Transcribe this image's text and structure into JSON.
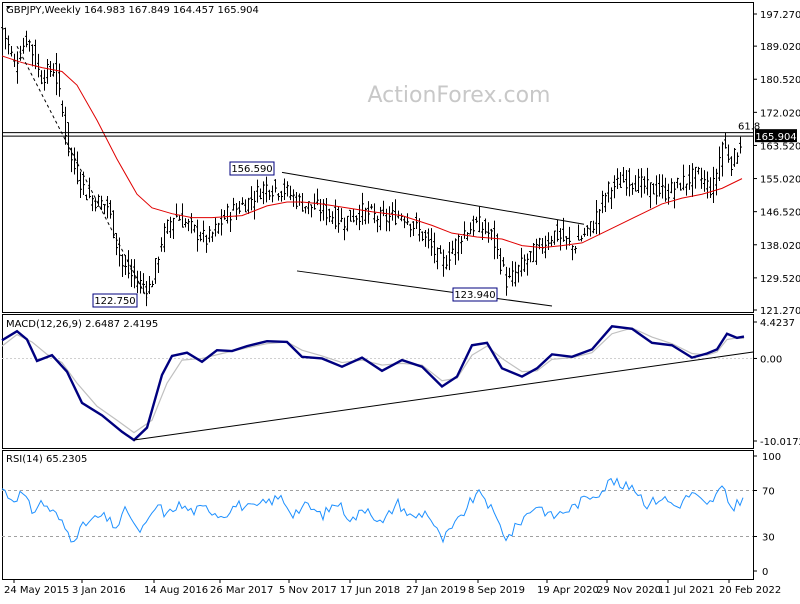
{
  "main": {
    "header": "GBPJPY,Weekly  164.983 167.849 164.457 165.904",
    "watermark": "ActionForex.com",
    "current_price": "165.904",
    "fib_label": "61.8",
    "annotations": [
      "156.590",
      "122.750",
      "123.940"
    ]
  },
  "macd": {
    "header": "MACD(12,26,9) 2.6487 2.4195"
  },
  "rsi": {
    "header": "RSI(14) 65.2305"
  },
  "colors": {
    "price_bar": "#000000",
    "moving_average": "#e00000",
    "macd_line": "#00007f",
    "signal_line": "#c0c0c0",
    "rsi_line": "#1e90ff",
    "border": "#000000",
    "current_price_bg": "#000000"
  },
  "chart_data": [
    {
      "type": "ohlc",
      "panel": "price",
      "title": "GBPJPY,Weekly",
      "ylim": [
        121.27,
        198.0
      ],
      "y_tick_labels": [
        "197.270",
        "189.020",
        "180.520",
        "172.020",
        "163.520",
        "155.020",
        "146.520",
        "138.020",
        "129.520",
        "121.270"
      ],
      "x_tick_labels": [
        "24 May 2015",
        "3 Jan 2016",
        "14 Aug 2016",
        "26 Mar 2017",
        "5 Nov 2017",
        "17 Jun 2018",
        "27 Jan 2019",
        "8 Sep 2019",
        "19 Apr 2020",
        "29 Nov 2020",
        "11 Jul 2021",
        "20 Feb 2022"
      ],
      "series": [
        {
          "values": [
            [
              0,
              193.5
            ],
            [
              12,
              184.5
            ],
            [
              25,
              191.5
            ],
            [
              38,
              181.0
            ],
            [
              52,
              183.5
            ],
            [
              68,
              160.0
            ],
            [
              85,
              150.5
            ],
            [
              105,
              148.0
            ],
            [
              120,
              132.5
            ],
            [
              135,
              128.5
            ],
            [
              148,
              127.0
            ],
            [
              160,
              140.0
            ],
            [
              172,
              146.0
            ],
            [
              190,
              142.0
            ],
            [
              205,
              139.0
            ],
            [
              225,
              146.0
            ],
            [
              245,
              149.0
            ],
            [
              262,
              153.0
            ],
            [
              282,
              152.0
            ],
            [
              300,
              148.5
            ],
            [
              320,
              147.0
            ],
            [
              340,
              144.0
            ],
            [
              360,
              146.5
            ],
            [
              380,
              144.5
            ],
            [
              400,
              146.0
            ],
            [
              420,
              140.5
            ],
            [
              440,
              133.0
            ],
            [
              460,
              141.0
            ],
            [
              475,
              143.5
            ],
            [
              490,
              140.0
            ],
            [
              505,
              128.0
            ],
            [
              520,
              133.0
            ],
            [
              535,
              137.0
            ],
            [
              552,
              141.0
            ],
            [
              570,
              137.5
            ],
            [
              590,
              143.0
            ],
            [
              605,
              152.0
            ],
            [
              625,
              155.0
            ],
            [
              645,
              152.5
            ],
            [
              665,
              151.5
            ],
            [
              680,
              154.0
            ],
            [
              695,
              156.0
            ],
            [
              710,
              152.0
            ],
            [
              720,
              164.0
            ],
            [
              730,
              159.0
            ],
            [
              740,
              165.9
            ]
          ]
        },
        {
          "name": "",
          "values": [
            [
              0,
              186.5
            ],
            [
              20,
              184.8
            ],
            [
              40,
              183.5
            ],
            [
              60,
              182.5
            ],
            [
              75,
              179.0
            ],
            [
              95,
              170.0
            ],
            [
              115,
              160.0
            ],
            [
              135,
              151.0
            ],
            [
              150,
              147.5
            ],
            [
              170,
              146.0
            ],
            [
              190,
              145.0
            ],
            [
              210,
              145.0
            ],
            [
              240,
              145.5
            ],
            [
              265,
              148.0
            ],
            [
              285,
              149.0
            ],
            [
              300,
              149.0
            ],
            [
              320,
              148.5
            ],
            [
              345,
              147.5
            ],
            [
              370,
              146.5
            ],
            [
              400,
              145.5
            ],
            [
              430,
              143.0
            ],
            [
              450,
              141.0
            ],
            [
              475,
              140.0
            ],
            [
              500,
              139.5
            ],
            [
              520,
              137.8
            ],
            [
              540,
              137.3
            ],
            [
              560,
              137.8
            ],
            [
              580,
              138.5
            ],
            [
              600,
              141.0
            ],
            [
              620,
              143.5
            ],
            [
              640,
              146.0
            ],
            [
              660,
              148.5
            ],
            [
              680,
              150.0
            ],
            [
              700,
              151.0
            ],
            [
              720,
              152.5
            ],
            [
              740,
              155.0
            ]
          ]
        }
      ],
      "annotations": [
        {
          "label": "156.590",
          "x": 280,
          "y": 156.59
        },
        {
          "label": "122.750",
          "x": 145,
          "y": 122.75
        },
        {
          "label": "123.940",
          "x": 505,
          "y": 123.94
        },
        {
          "label": "61.8",
          "x": 740,
          "y": 166.8
        }
      ],
      "trendlines": [
        {
          "from": [
            280,
            156.6
          ],
          "to": [
            582,
            143.3
          ]
        },
        {
          "from": [
            295,
            131.3
          ],
          "to": [
            550,
            122.3
          ]
        },
        {
          "from": [
            15,
            189.0
          ],
          "to": [
            145,
            124.3
          ],
          "style": "dashed"
        }
      ],
      "horizontal_lines": [
        166.8,
        165.904
      ],
      "current_price": 165.904
    },
    {
      "type": "line",
      "panel": "macd",
      "title": "MACD(12,26,9) 2.6487 2.4195",
      "ylim": [
        -10.0172,
        4.4237
      ],
      "y_tick_labels": [
        "4.4237",
        "0.00",
        "-10.0172"
      ],
      "series": [
        {
          "name": "MACD",
          "values": [
            [
              0,
              2.2
            ],
            [
              15,
              3.3
            ],
            [
              25,
              2.3
            ],
            [
              35,
              -0.3
            ],
            [
              50,
              0.4
            ],
            [
              65,
              -1.6
            ],
            [
              80,
              -5.4
            ],
            [
              100,
              -6.9
            ],
            [
              120,
              -8.9
            ],
            [
              132,
              -9.9
            ],
            [
              145,
              -8.4
            ],
            [
              160,
              -2.0
            ],
            [
              170,
              0.3
            ],
            [
              185,
              0.7
            ],
            [
              200,
              -0.4
            ],
            [
              215,
              1.0
            ],
            [
              230,
              0.9
            ],
            [
              245,
              1.5
            ],
            [
              265,
              2.1
            ],
            [
              285,
              2.0
            ],
            [
              300,
              0.2
            ],
            [
              320,
              0.0
            ],
            [
              340,
              -1.0
            ],
            [
              360,
              0.1
            ],
            [
              380,
              -1.5
            ],
            [
              400,
              -0.2
            ],
            [
              420,
              -1.0
            ],
            [
              440,
              -3.4
            ],
            [
              455,
              -2.2
            ],
            [
              470,
              1.6
            ],
            [
              485,
              1.9
            ],
            [
              500,
              -1.2
            ],
            [
              520,
              -2.2
            ],
            [
              535,
              -1.2
            ],
            [
              550,
              0.5
            ],
            [
              570,
              0.2
            ],
            [
              590,
              1.1
            ],
            [
              610,
              3.9
            ],
            [
              630,
              3.6
            ],
            [
              650,
              1.9
            ],
            [
              670,
              1.6
            ],
            [
              690,
              0.1
            ],
            [
              705,
              0.6
            ],
            [
              715,
              1.1
            ],
            [
              725,
              3.0
            ],
            [
              735,
              2.5
            ],
            [
              742,
              2.65
            ]
          ]
        },
        {
          "name": "Signal",
          "values": [
            [
              0,
              1.5
            ],
            [
              15,
              2.9
            ],
            [
              30,
              2.0
            ],
            [
              45,
              0.5
            ],
            [
              60,
              -0.5
            ],
            [
              75,
              -3.0
            ],
            [
              95,
              -5.8
            ],
            [
              115,
              -7.5
            ],
            [
              132,
              -9.0
            ],
            [
              150,
              -7.5
            ],
            [
              165,
              -3.0
            ],
            [
              180,
              -0.2
            ],
            [
              200,
              0.0
            ],
            [
              220,
              0.6
            ],
            [
              245,
              1.3
            ],
            [
              265,
              1.8
            ],
            [
              285,
              2.0
            ],
            [
              300,
              1.0
            ],
            [
              320,
              0.3
            ],
            [
              340,
              -0.5
            ],
            [
              360,
              -0.2
            ],
            [
              380,
              -0.8
            ],
            [
              400,
              -0.6
            ],
            [
              420,
              -0.8
            ],
            [
              440,
              -2.7
            ],
            [
              455,
              -2.4
            ],
            [
              470,
              0.4
            ],
            [
              485,
              1.5
            ],
            [
              500,
              0.0
            ],
            [
              520,
              -1.6
            ],
            [
              535,
              -1.5
            ],
            [
              550,
              -0.1
            ],
            [
              570,
              0.1
            ],
            [
              590,
              0.7
            ],
            [
              610,
              3.0
            ],
            [
              630,
              3.7
            ],
            [
              650,
              2.6
            ],
            [
              670,
              1.8
            ],
            [
              690,
              0.6
            ],
            [
              705,
              0.4
            ],
            [
              715,
              0.8
            ],
            [
              725,
              2.3
            ],
            [
              735,
              2.5
            ],
            [
              742,
              2.42
            ]
          ]
        }
      ],
      "trendlines": [
        {
          "from": [
            132,
            -9.9
          ],
          "to": [
            752,
            0.8
          ]
        }
      ]
    },
    {
      "type": "line",
      "panel": "rsi",
      "title": "RSI(14) 65.2305",
      "ylim": [
        0,
        100
      ],
      "y_tick_labels": [
        "100",
        "70",
        "30",
        "0"
      ],
      "reference_lines": [
        70,
        30
      ],
      "series": [
        {
          "name": "RSI(14)",
          "values": [
            [
              0,
              72
            ],
            [
              10,
              62
            ],
            [
              20,
              68
            ],
            [
              30,
              52
            ],
            [
              40,
              60
            ],
            [
              55,
              48
            ],
            [
              70,
              28
            ],
            [
              85,
              42
            ],
            [
              100,
              48
            ],
            [
              115,
              38
            ],
            [
              125,
              55
            ],
            [
              135,
              34
            ],
            [
              145,
              40
            ],
            [
              155,
              58
            ],
            [
              165,
              48
            ],
            [
              175,
              58
            ],
            [
              190,
              52
            ],
            [
              205,
              55
            ],
            [
              220,
              48
            ],
            [
              235,
              58
            ],
            [
              250,
              54
            ],
            [
              265,
              60
            ],
            [
              280,
              64
            ],
            [
              290,
              50
            ],
            [
              305,
              57
            ],
            [
              320,
              48
            ],
            [
              335,
              60
            ],
            [
              350,
              44
            ],
            [
              365,
              56
            ],
            [
              380,
              40
            ],
            [
              395,
              60
            ],
            [
              410,
              46
            ],
            [
              425,
              52
            ],
            [
              440,
              26
            ],
            [
              455,
              42
            ],
            [
              470,
              62
            ],
            [
              480,
              68
            ],
            [
              490,
              52
            ],
            [
              505,
              28
            ],
            [
              520,
              45
            ],
            [
              535,
              58
            ],
            [
              550,
              47
            ],
            [
              570,
              55
            ],
            [
              585,
              64
            ],
            [
              600,
              70
            ],
            [
              610,
              80
            ],
            [
              620,
              72
            ],
            [
              630,
              75
            ],
            [
              645,
              58
            ],
            [
              660,
              64
            ],
            [
              675,
              56
            ],
            [
              690,
              68
            ],
            [
              705,
              56
            ],
            [
              720,
              72
            ],
            [
              730,
              54
            ],
            [
              742,
              65.2
            ]
          ]
        }
      ]
    }
  ]
}
